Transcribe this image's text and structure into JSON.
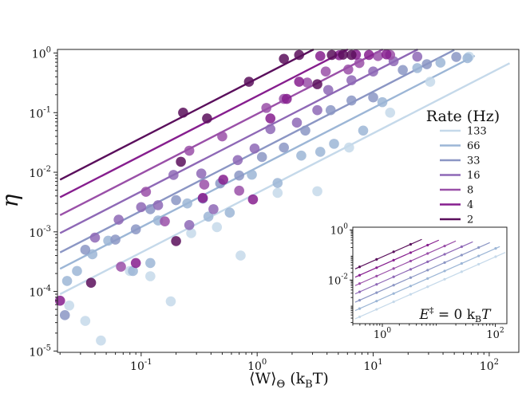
{
  "chart_data": {
    "type": "scatter",
    "xscale": "log",
    "yscale": "log",
    "xlim": [
      0.019,
      180
    ],
    "ylim": [
      9.5e-06,
      1.15
    ],
    "xlabel": {
      "main": "⟨W⟩",
      "sub": "Θ",
      "unit": " (k",
      "unit_sub": "B",
      "unit_end": "T)"
    },
    "ylabel": "η",
    "x_tick_labels": [
      {
        "value": 0.1,
        "base": "10",
        "exp": "-1"
      },
      {
        "value": 1,
        "base": "10",
        "exp": "0"
      },
      {
        "value": 10,
        "base": "10",
        "exp": "1"
      },
      {
        "value": 100,
        "base": "10",
        "exp": "2"
      }
    ],
    "y_tick_labels": [
      {
        "value": 1e-05,
        "base": "10",
        "exp": "-5"
      },
      {
        "value": 0.0001,
        "base": "10",
        "exp": "-4"
      },
      {
        "value": 0.001,
        "base": "10",
        "exp": "-3"
      },
      {
        "value": 0.01,
        "base": "10",
        "exp": "-2"
      },
      {
        "value": 0.1,
        "base": "10",
        "exp": "-1"
      },
      {
        "value": 1,
        "base": "10",
        "exp": "0"
      }
    ],
    "legend": {
      "title": "Rate (Hz)",
      "placement": "right"
    },
    "series": [
      {
        "name": "133",
        "color": "#c5d9ea",
        "line": {
          "x0": 0.02,
          "y0": 9e-05,
          "slope": 1.0,
          "xmax": 150
        },
        "points": [
          [
            0.024,
            5.8e-05
          ],
          [
            0.033,
            3.2e-05
          ],
          [
            0.045,
            1.5e-05
          ],
          [
            0.08,
            0.00022
          ],
          [
            0.12,
            0.00018
          ],
          [
            0.18,
            6.8e-05
          ],
          [
            0.27,
            0.00095
          ],
          [
            0.45,
            0.0012
          ],
          [
            0.72,
            0.0004
          ],
          [
            1.5,
            0.0045
          ],
          [
            3.3,
            0.0048
          ],
          [
            6.2,
            0.026
          ],
          [
            14,
            0.1
          ],
          [
            31,
            0.33
          ],
          [
            67,
            0.87
          ]
        ]
      },
      {
        "name": "66",
        "color": "#9cb6d6",
        "line": {
          "x0": 0.02,
          "y0": 0.00024,
          "slope": 1.0,
          "xmax": 75
        },
        "points": [
          [
            0.023,
            0.00015
          ],
          [
            0.028,
            0.00022
          ],
          [
            0.038,
            0.00042
          ],
          [
            0.052,
            0.00071
          ],
          [
            0.085,
            0.00022
          ],
          [
            0.12,
            0.0003
          ],
          [
            0.14,
            0.00155
          ],
          [
            0.25,
            0.003
          ],
          [
            0.38,
            0.0018
          ],
          [
            0.58,
            0.0021
          ],
          [
            0.9,
            0.0091
          ],
          [
            1.5,
            0.0066
          ],
          [
            2.4,
            0.019
          ],
          [
            3.5,
            0.022
          ],
          [
            4.6,
            0.03
          ],
          [
            8.2,
            0.05
          ],
          [
            12,
            0.15
          ],
          [
            24,
            0.56
          ],
          [
            38,
            0.69
          ],
          [
            65,
            0.82
          ]
        ]
      },
      {
        "name": "33",
        "color": "#8b96c4",
        "line": {
          "x0": 0.02,
          "y0": 0.00045,
          "slope": 1.0,
          "xmax": 50
        },
        "points": [
          [
            0.022,
            4e-05
          ],
          [
            0.033,
            0.0005
          ],
          [
            0.06,
            0.00074
          ],
          [
            0.09,
            0.0011
          ],
          [
            0.12,
            0.0024
          ],
          [
            0.2,
            0.0034
          ],
          [
            0.34,
            0.0036
          ],
          [
            0.48,
            0.0065
          ],
          [
            0.7,
            0.0088
          ],
          [
            1.1,
            0.018
          ],
          [
            1.7,
            0.026
          ],
          [
            2.6,
            0.05
          ],
          [
            4.3,
            0.11
          ],
          [
            6.5,
            0.16
          ],
          [
            10,
            0.18
          ],
          [
            18,
            0.52
          ],
          [
            29,
            0.65
          ],
          [
            52,
            0.86
          ]
        ]
      },
      {
        "name": "16",
        "color": "#8e68b6",
        "line": {
          "x0": 0.02,
          "y0": 0.00095,
          "slope": 1.0,
          "xmax": 30
        },
        "points": [
          [
            0.04,
            0.0008
          ],
          [
            0.064,
            0.0016
          ],
          [
            0.1,
            0.0026
          ],
          [
            0.14,
            0.0028
          ],
          [
            0.19,
            0.009
          ],
          [
            0.26,
            0.0013
          ],
          [
            0.33,
            0.0095
          ],
          [
            0.42,
            0.0024
          ],
          [
            0.68,
            0.016
          ],
          [
            0.95,
            0.025
          ],
          [
            1.3,
            0.053
          ],
          [
            2.2,
            0.068
          ],
          [
            3.3,
            0.11
          ],
          [
            4.1,
            0.24
          ],
          [
            6.5,
            0.35
          ],
          [
            10,
            0.49
          ],
          [
            15,
            0.73
          ],
          [
            24,
            0.87
          ]
        ]
      },
      {
        "name": "8",
        "color": "#9a50a8",
        "line": {
          "x0": 0.02,
          "y0": 0.0019,
          "slope": 1.0,
          "xmax": 22
        },
        "points": [
          [
            0.067,
            0.00026
          ],
          [
            0.11,
            0.0047
          ],
          [
            0.16,
            0.0015
          ],
          [
            0.26,
            0.023
          ],
          [
            0.35,
            0.0062
          ],
          [
            0.5,
            0.04
          ],
          [
            0.7,
            0.0049
          ],
          [
            1.2,
            0.12
          ],
          [
            1.7,
            0.17
          ],
          [
            2.7,
            0.32
          ],
          [
            3.9,
            0.49
          ],
          [
            6.1,
            0.53
          ],
          [
            7.6,
            0.68
          ],
          [
            11,
            0.89
          ],
          [
            14,
            0.93
          ]
        ]
      },
      {
        "name": "4",
        "color": "#861e8e",
        "line": {
          "x0": 0.02,
          "y0": 0.0038,
          "slope": 1.0,
          "xmax": 14
        },
        "points": [
          [
            0.02,
            7e-05
          ],
          [
            0.09,
            0.0003
          ],
          [
            0.34,
            0.0037
          ],
          [
            0.51,
            0.0075
          ],
          [
            0.92,
            0.0035
          ],
          [
            1.3,
            0.08
          ],
          [
            1.8,
            0.17
          ],
          [
            2.3,
            0.33
          ],
          [
            3.5,
            0.89
          ],
          [
            5.1,
            0.92
          ],
          [
            7.1,
            0.94
          ],
          [
            9.2,
            0.93
          ],
          [
            13,
            0.95
          ]
        ]
      },
      {
        "name": "2",
        "color": "#5a0f5c",
        "line": {
          "x0": 0.02,
          "y0": 0.0075,
          "slope": 1.0,
          "xmax": 8
        },
        "points": [
          [
            0.037,
            0.00014
          ],
          [
            0.2,
            0.0007
          ],
          [
            0.22,
            0.015
          ],
          [
            0.23,
            0.1
          ],
          [
            0.37,
            0.08
          ],
          [
            0.85,
            0.33
          ],
          [
            1.7,
            0.8
          ],
          [
            2.3,
            0.93
          ],
          [
            3.3,
            0.3
          ],
          [
            4.4,
            0.93
          ],
          [
            5.5,
            0.94
          ],
          [
            6.5,
            0.93
          ]
        ]
      }
    ],
    "inset": {
      "xlim": [
        0.3,
        160
      ],
      "ylim": [
        0.00018,
        1.3
      ],
      "x_tick_labels": [
        {
          "value": 1,
          "base": "10",
          "exp": "0"
        },
        {
          "value": 100,
          "base": "10",
          "exp": "2"
        }
      ],
      "y_tick_labels": [
        {
          "value": 0.01,
          "base": "10",
          "exp": "-2"
        },
        {
          "value": 1,
          "base": "10",
          "exp": "0"
        }
      ],
      "annotation": {
        "main": "E",
        "sup": "‡",
        "eq": " = 0 k",
        "sub": "B",
        "end": "T"
      },
      "series": [
        {
          "name": "133",
          "color": "#c5d9ea",
          "x0": 0.33,
          "y0": 0.00028,
          "xmax": 150
        },
        {
          "name": "66",
          "color": "#9cb6d6",
          "x0": 0.33,
          "y0": 0.0006,
          "xmax": 120
        },
        {
          "name": "33",
          "color": "#8b96c4",
          "x0": 0.33,
          "y0": 0.0013,
          "xmax": 80
        },
        {
          "name": "16",
          "color": "#8e68b6",
          "x0": 0.33,
          "y0": 0.0028,
          "xmax": 40
        },
        {
          "name": "8",
          "color": "#9a50a8",
          "x0": 0.33,
          "y0": 0.006,
          "xmax": 20
        },
        {
          "name": "4",
          "color": "#861e8e",
          "x0": 0.33,
          "y0": 0.013,
          "xmax": 10
        },
        {
          "name": "2",
          "color": "#5a0f5c",
          "x0": 0.33,
          "y0": 0.028,
          "xmax": 5
        }
      ]
    }
  }
}
